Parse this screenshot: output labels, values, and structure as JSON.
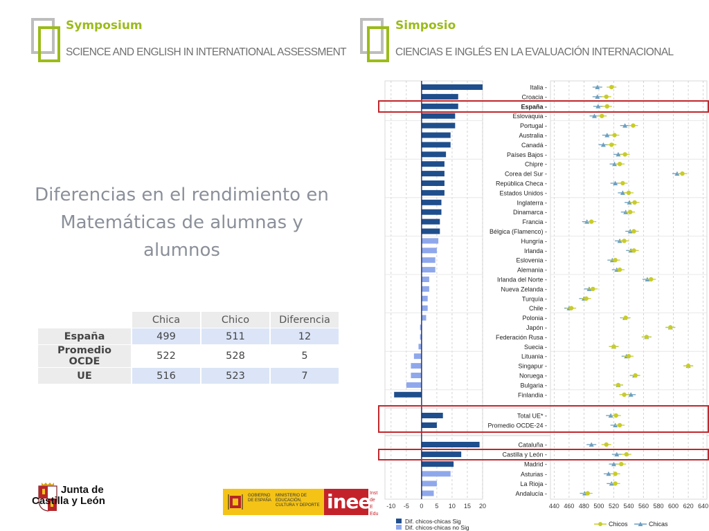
{
  "header_left": {
    "title": "Symposium",
    "subtitle": "SCIENCE AND ENGLISH IN INTERNATIONAL ASSESSMENT"
  },
  "header_right": {
    "title": "Simposio",
    "subtitle": "CIENCIAS E INGLÉS EN LA  EVALUACIÓN INTERNACIONAL"
  },
  "headline": "Diferencias en el rendimiento en Matemáticas de alumnas y alumnos",
  "comparison_table": {
    "headers": [
      "Chica",
      "Chico",
      "Diferencia"
    ],
    "rows": [
      {
        "label": "España",
        "chica": "499",
        "chico": "511",
        "diff": "12"
      },
      {
        "label": "Promedio OCDE",
        "chica": "522",
        "chico": "528",
        "diff": "5"
      },
      {
        "label": "UE",
        "chica": "516",
        "chico": "523",
        "diff": "7"
      }
    ]
  },
  "footer": {
    "jcyl_line1": "Junta de",
    "jcyl_line2": "Castilla y León",
    "gob_text": "GOBIERNO DE ESPAÑA",
    "min_text": "MINISTERIO DE EDUCACIÓN, CULTURA Y DEPORTE",
    "inee": "inee",
    "inee_side": "Inst de E Edu"
  },
  "colors": {
    "sig": "#1f4e8c",
    "nosig": "#8fa8ec",
    "chicos": "#c8cc2a",
    "chicas": "#6d9fc0",
    "highlight": "#c0262b",
    "accent": "#9bbb1a"
  },
  "chart_data": [
    {
      "type": "bar",
      "orientation": "horizontal",
      "xlim": [
        -12,
        20
      ],
      "xticks": [
        -10,
        -5,
        0,
        5,
        10,
        15,
        20
      ],
      "legend": [
        {
          "name": "Dif. chicos-chicas Sig",
          "color": "#1f4e8c"
        },
        {
          "name": "Dif. chicos-chicas no Sig",
          "color": "#8fa8ec"
        }
      ],
      "series": [
        {
          "group": "main",
          "values": [
            20,
            12,
            12,
            11,
            11,
            9.5,
            9.5,
            8,
            7.5,
            7.5,
            7.5,
            7.5,
            6.5,
            6.5,
            6,
            6,
            5.5,
            5,
            4.5,
            4.5,
            2.5,
            2.5,
            2,
            2,
            1.5,
            -0.5,
            -0.5,
            -1,
            -2.5,
            -3.5,
            -3.5,
            -5,
            -9
          ],
          "sig": [
            true,
            true,
            true,
            true,
            true,
            true,
            true,
            true,
            true,
            true,
            true,
            true,
            true,
            true,
            true,
            true,
            false,
            false,
            false,
            false,
            false,
            false,
            false,
            false,
            false,
            false,
            false,
            false,
            false,
            false,
            false,
            false,
            true
          ]
        },
        {
          "group": "avg",
          "values": [
            7,
            5
          ],
          "sig": [
            true,
            true
          ]
        },
        {
          "group": "regions",
          "values": [
            19,
            13,
            10.5,
            9.5,
            5,
            4
          ],
          "sig": [
            true,
            true,
            true,
            false,
            false,
            false
          ]
        }
      ]
    },
    {
      "type": "scatter",
      "xlim": [
        435,
        645
      ],
      "xticks": [
        440,
        460,
        480,
        500,
        520,
        540,
        560,
        580,
        600,
        620,
        640
      ],
      "legend": [
        {
          "name": "Chicos",
          "color": "#c8cc2a"
        },
        {
          "name": "Chicas",
          "color": "#6d9fc0"
        }
      ],
      "categories": [
        "Italia",
        "Croacia",
        "España",
        "Eslovaquia",
        "Portugal",
        "Australia",
        "Canadá",
        "Países Bajos",
        "Chipre",
        "Corea del Sur",
        "República Checa",
        "Estados Unidos",
        "Inglaterra",
        "Dinamarca",
        "Francia",
        "Bélgica (Flamenco)",
        "Hungría",
        "Irlanda",
        "Eslovenia",
        "Alemania",
        "Irlanda del Norte",
        "Nueva Zelanda",
        "Turquía",
        "Chile",
        "Polonia",
        "Japón",
        "Federación Rusa",
        "Suecia",
        "Lituania",
        "Singapur",
        "Noruega",
        "Bulgaria",
        "Finlandia",
        "Total UE*",
        "Promedio OCDE-24",
        "Cataluña",
        "Castilla y León",
        "Madrid",
        "Asturias",
        "La Rioja",
        "Andalucía"
      ],
      "highlighted": [
        "España",
        "Total UE*",
        "Promedio OCDE-24",
        "Castilla y León"
      ],
      "groups": [
        33,
        2,
        6
      ],
      "series": [
        {
          "name": "Chicos",
          "values": [
            517,
            510,
            511,
            504,
            546,
            521,
            517,
            535,
            528,
            612,
            532,
            540,
            548,
            542,
            490,
            547,
            534,
            547,
            522,
            528,
            570,
            492,
            483,
            463,
            536,
            596,
            564,
            520,
            540,
            620,
            549,
            526,
            534,
            523,
            528,
            510,
            537,
            530,
            522,
            522,
            485
          ]
        },
        {
          "name": "Chicas",
          "values": [
            498,
            498,
            499,
            494,
            535,
            511,
            506,
            526,
            521,
            605,
            522,
            532,
            541,
            536,
            484,
            542,
            528,
            543,
            518,
            524,
            565,
            487,
            480,
            460,
            535,
            596,
            564,
            520,
            537,
            620,
            548,
            526,
            543,
            516,
            522,
            490,
            524,
            520,
            513,
            517,
            481
          ]
        }
      ]
    }
  ]
}
